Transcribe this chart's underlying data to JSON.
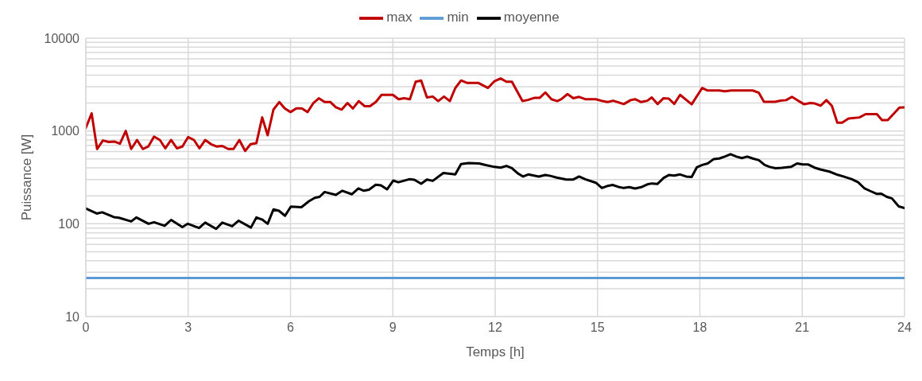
{
  "chart_data": {
    "type": "line",
    "xlabel": "Temps [h]",
    "ylabel": "Puissance [W]",
    "log": "y",
    "xlim": [
      0,
      24
    ],
    "xticks": [
      0,
      3,
      6,
      9,
      12,
      15,
      18,
      21,
      24
    ],
    "ylim": [
      10,
      10000
    ],
    "yticks": [
      10,
      100,
      1000,
      10000
    ],
    "grid": true,
    "legend": "top",
    "marker": "none",
    "line_style": "solid",
    "series": [
      {
        "name": "min",
        "color": "#5b9bd5",
        "x": [
          0,
          1,
          2,
          3,
          4,
          5,
          6,
          7,
          8,
          9,
          10,
          11,
          12,
          13,
          14,
          15,
          16,
          17,
          18,
          19,
          20,
          21,
          22,
          23,
          24
        ],
        "values": [
          26,
          26,
          26,
          26,
          26,
          26,
          26,
          26,
          26,
          26,
          26,
          26,
          26,
          26,
          26,
          26,
          26,
          26,
          26,
          26,
          26,
          26,
          26,
          26,
          26
        ]
      },
      {
        "name": "moyenne",
        "color": "#000000",
        "x": [
          0,
          0.32,
          0.48,
          0.82,
          0.97,
          1.33,
          1.48,
          1.84,
          2.0,
          2.31,
          2.5,
          2.83,
          2.99,
          3.32,
          3.5,
          3.82,
          4.0,
          4.29,
          4.48,
          4.84,
          5.0,
          5.17,
          5.33,
          5.5,
          5.66,
          5.84,
          6.01,
          6.32,
          6.54,
          6.71,
          6.85,
          7.0,
          7.33,
          7.52,
          7.8,
          7.99,
          8.15,
          8.3,
          8.5,
          8.65,
          8.83,
          9.01,
          9.16,
          9.48,
          9.63,
          9.83,
          10.0,
          10.17,
          10.48,
          10.64,
          10.83,
          11.0,
          11.22,
          11.53,
          11.72,
          11.98,
          12.16,
          12.33,
          12.49,
          12.66,
          12.82,
          12.97,
          13.28,
          13.47,
          13.62,
          13.8,
          14.09,
          14.29,
          14.46,
          14.64,
          14.95,
          15.13,
          15.3,
          15.44,
          15.61,
          15.77,
          15.93,
          16.1,
          16.28,
          16.46,
          16.59,
          16.76,
          16.94,
          17.09,
          17.25,
          17.42,
          17.6,
          17.76,
          17.91,
          18.07,
          18.23,
          18.41,
          18.57,
          18.73,
          18.9,
          19.07,
          19.23,
          19.39,
          19.55,
          19.73,
          19.9,
          20.05,
          20.22,
          20.4,
          20.67,
          20.85,
          21.02,
          21.18,
          21.36,
          21.53,
          21.8,
          22.04,
          22.21,
          22.46,
          22.64,
          22.83,
          23.0,
          23.18,
          23.32,
          23.48,
          23.63,
          23.83,
          24
        ],
        "values": [
          146,
          129,
          133,
          118,
          116,
          106,
          117,
          100,
          104,
          95,
          110,
          92,
          100,
          90,
          103,
          88,
          103,
          94,
          108,
          91,
          117,
          111,
          100,
          143,
          138,
          122,
          153,
          151,
          175,
          190,
          195,
          220,
          205,
          227,
          208,
          240,
          227,
          233,
          263,
          260,
          235,
          292,
          280,
          302,
          298,
          270,
          300,
          290,
          353,
          347,
          340,
          441,
          452,
          447,
          430,
          410,
          403,
          420,
          397,
          350,
          323,
          340,
          323,
          336,
          328,
          315,
          300,
          300,
          323,
          302,
          277,
          243,
          256,
          262,
          250,
          243,
          248,
          240,
          248,
          266,
          272,
          269,
          312,
          335,
          331,
          340,
          323,
          319,
          405,
          430,
          447,
          499,
          505,
          530,
          563,
          530,
          511,
          530,
          505,
          485,
          430,
          410,
          397,
          400,
          410,
          447,
          435,
          435,
          403,
          385,
          365,
          337,
          323,
          302,
          280,
          240,
          225,
          210,
          211,
          195,
          188,
          154,
          148
        ]
      },
      {
        "name": "max",
        "color": "#c00000",
        "x": [
          0,
          0.17,
          0.33,
          0.5,
          0.67,
          0.83,
          1.0,
          1.17,
          1.33,
          1.5,
          1.67,
          1.83,
          2.0,
          2.17,
          2.33,
          2.5,
          2.67,
          2.83,
          3.0,
          3.17,
          3.33,
          3.5,
          3.67,
          3.83,
          4.0,
          4.17,
          4.33,
          4.5,
          4.67,
          4.83,
          5.0,
          5.17,
          5.33,
          5.5,
          5.67,
          5.83,
          6.0,
          6.17,
          6.33,
          6.5,
          6.67,
          6.83,
          7.0,
          7.17,
          7.33,
          7.5,
          7.67,
          7.83,
          8.0,
          8.17,
          8.33,
          8.5,
          8.67,
          8.83,
          9.0,
          9.17,
          9.33,
          9.5,
          9.67,
          9.83,
          10.0,
          10.17,
          10.33,
          10.5,
          10.67,
          10.83,
          11.0,
          11.17,
          11.5,
          11.79,
          11.98,
          12.16,
          12.33,
          12.49,
          12.8,
          12.96,
          13.16,
          13.31,
          13.47,
          13.65,
          13.82,
          13.94,
          14.12,
          14.29,
          14.46,
          14.64,
          14.95,
          15.15,
          15.3,
          15.46,
          15.77,
          15.97,
          16.1,
          16.28,
          16.46,
          16.59,
          16.76,
          16.93,
          17.09,
          17.25,
          17.42,
          17.76,
          18.07,
          18.23,
          18.57,
          18.73,
          18.92,
          19.55,
          19.73,
          19.88,
          20.2,
          20.37,
          20.53,
          20.7,
          20.88,
          21.06,
          21.23,
          21.37,
          21.54,
          21.71,
          21.87,
          22.03,
          22.17,
          22.36,
          22.68,
          22.86,
          23.19,
          23.34,
          23.51,
          23.85,
          24
        ],
        "values": [
          1080,
          1550,
          640,
          790,
          760,
          770,
          730,
          1000,
          640,
          800,
          640,
          680,
          870,
          800,
          650,
          800,
          650,
          680,
          860,
          800,
          650,
          800,
          720,
          680,
          690,
          640,
          640,
          800,
          610,
          720,
          740,
          1400,
          900,
          1700,
          2050,
          1750,
          1600,
          1750,
          1750,
          1600,
          2000,
          2250,
          2050,
          2050,
          1800,
          1700,
          2000,
          1750,
          2100,
          1850,
          1850,
          2050,
          2450,
          2450,
          2450,
          2200,
          2250,
          2200,
          3400,
          3500,
          2300,
          2350,
          2100,
          2350,
          2100,
          2900,
          3500,
          3300,
          3300,
          2910,
          3440,
          3680,
          3390,
          3390,
          2100,
          2160,
          2280,
          2280,
          2600,
          2200,
          2100,
          2200,
          2500,
          2250,
          2330,
          2200,
          2200,
          2100,
          2050,
          2120,
          1950,
          2150,
          2200,
          2050,
          2120,
          2300,
          1950,
          2250,
          2230,
          1960,
          2450,
          1940,
          2910,
          2730,
          2730,
          2680,
          2730,
          2730,
          2580,
          2060,
          2060,
          2120,
          2150,
          2330,
          2120,
          1940,
          2000,
          1980,
          1870,
          2150,
          1870,
          1230,
          1230,
          1360,
          1400,
          1520,
          1520,
          1310,
          1310,
          1790,
          1800
        ]
      }
    ]
  }
}
